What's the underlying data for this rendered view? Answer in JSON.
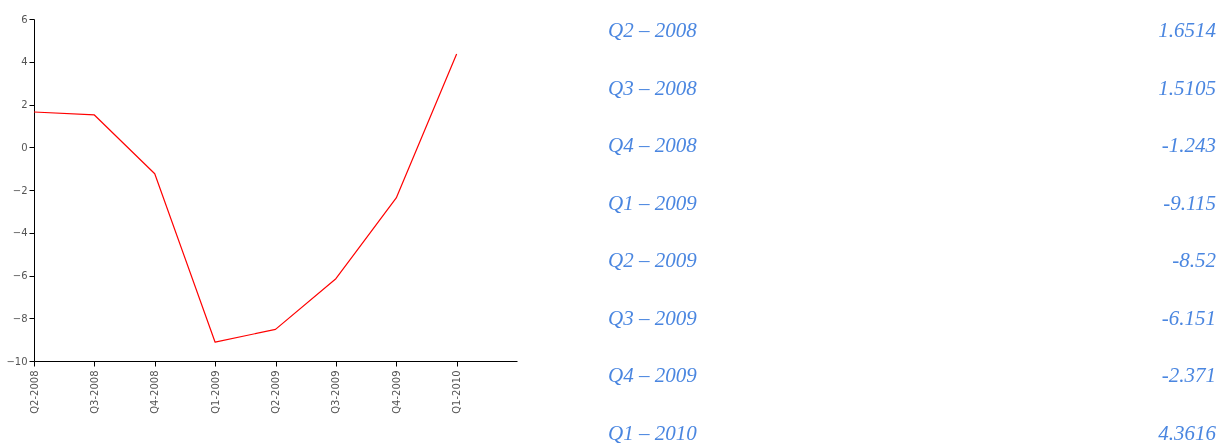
{
  "chart_data": [
    {
      "type": "line",
      "categories": [
        "Q2-2008",
        "Q3-2008",
        "Q4-2008",
        "Q1-2009",
        "Q2-2009",
        "Q3-2009",
        "Q4-2009",
        "Q1-2010"
      ],
      "series": [
        {
          "color": "#ff0000",
          "values": [
            1.65,
            1.51,
            -1.24,
            -9.12,
            -8.52,
            -6.15,
            -2.37,
            4.36
          ]
        }
      ],
      "ylim": [
        -10,
        6
      ],
      "yticks": [
        -10,
        -8,
        -6,
        -4,
        -2,
        0,
        2,
        4,
        6
      ],
      "marker": "none"
    },
    {
      "type": "other",
      "categories": [
        "Q2 – 2008",
        "Q3 – 2008",
        "Q4 – 2008",
        "Q1 – 2009",
        "Q2 – 2009",
        "Q3 – 2009",
        "Q4 – 2009",
        "Q1 – 2010"
      ],
      "values": [
        1.6514,
        1.5105,
        -1.243,
        -9.115,
        -8.52,
        -6.151,
        -2.371,
        4.3616
      ],
      "data_labels": true
    }
  ]
}
